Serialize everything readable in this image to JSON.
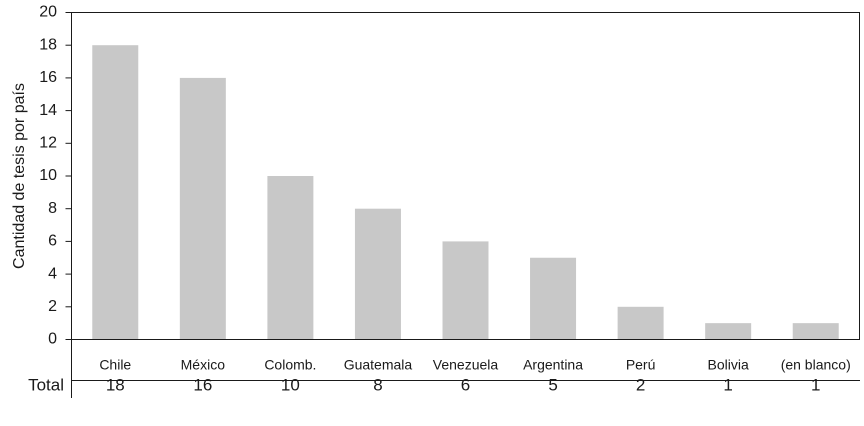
{
  "chart_data": {
    "type": "bar",
    "categories": [
      "Chile",
      "México",
      "Colomb.",
      "Guatemala",
      "Venezuela",
      "Argentina",
      "Perú",
      "Bolivia",
      "(en blanco)"
    ],
    "values": [
      18,
      16,
      10,
      8,
      6,
      5,
      2,
      1,
      1
    ],
    "ylabel": "Cantidad de tesis por país",
    "ylim": [
      0,
      20
    ],
    "yticks": [
      "0",
      "2",
      "4",
      "6",
      "8",
      "10",
      "12",
      "14",
      "16",
      "18",
      "20"
    ],
    "grid": false,
    "bar_color": "#c8c8c8",
    "table": {
      "row_label": "Total",
      "values": [
        "18",
        "16",
        "10",
        "8",
        "6",
        "5",
        "2",
        "1",
        "1"
      ]
    }
  }
}
